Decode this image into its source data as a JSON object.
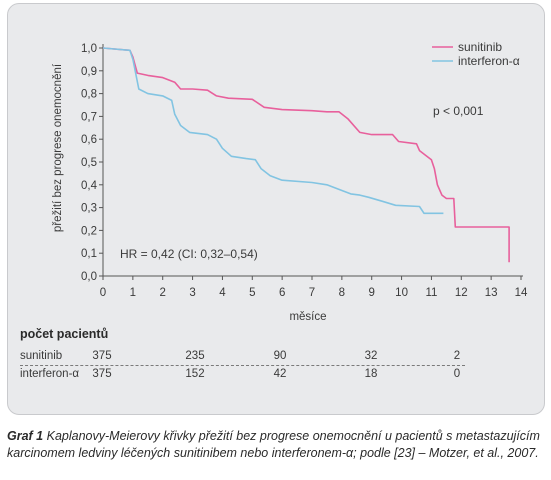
{
  "chart_data": {
    "type": "line",
    "xlabel": "měsíce",
    "ylabel": "přežití bez progrese onemocnění",
    "xlim": [
      0,
      14
    ],
    "ylim": [
      0,
      1.0
    ],
    "x_ticks": [
      "0",
      "1",
      "2",
      "3",
      "4",
      "5",
      "6",
      "7",
      "8",
      "9",
      "10",
      "11",
      "12",
      "13",
      "14"
    ],
    "y_ticks": [
      "0,0",
      "0,1",
      "0,2",
      "0,3",
      "0,4",
      "0,5",
      "0,6",
      "0,7",
      "0,8",
      "0,9",
      "1,0"
    ],
    "legend_position": "top-right",
    "series": [
      {
        "name": "sunitinib",
        "color": "#e8609c",
        "points": [
          [
            0,
            1.0
          ],
          [
            0.9,
            0.99
          ],
          [
            1.0,
            0.96
          ],
          [
            1.15,
            0.89
          ],
          [
            1.5,
            0.88
          ],
          [
            2.0,
            0.87
          ],
          [
            2.4,
            0.85
          ],
          [
            2.6,
            0.82
          ],
          [
            3.0,
            0.82
          ],
          [
            3.5,
            0.815
          ],
          [
            3.8,
            0.79
          ],
          [
            4.2,
            0.78
          ],
          [
            5.0,
            0.775
          ],
          [
            5.4,
            0.74
          ],
          [
            6.0,
            0.73
          ],
          [
            7.0,
            0.725
          ],
          [
            7.5,
            0.72
          ],
          [
            7.9,
            0.72
          ],
          [
            8.2,
            0.69
          ],
          [
            8.6,
            0.63
          ],
          [
            9.0,
            0.62
          ],
          [
            9.7,
            0.62
          ],
          [
            9.9,
            0.59
          ],
          [
            10.5,
            0.58
          ],
          [
            10.6,
            0.55
          ],
          [
            10.8,
            0.53
          ],
          [
            11.0,
            0.51
          ],
          [
            11.1,
            0.47
          ],
          [
            11.2,
            0.4
          ],
          [
            11.35,
            0.355
          ],
          [
            11.5,
            0.34
          ],
          [
            11.75,
            0.34
          ],
          [
            11.8,
            0.215
          ],
          [
            13.6,
            0.215
          ],
          [
            13.6,
            0.06
          ]
        ]
      },
      {
        "name": "interferon-α",
        "color": "#82c4e2",
        "points": [
          [
            0,
            1.0
          ],
          [
            0.9,
            0.99
          ],
          [
            1.0,
            0.95
          ],
          [
            1.2,
            0.82
          ],
          [
            1.5,
            0.8
          ],
          [
            2.0,
            0.79
          ],
          [
            2.3,
            0.77
          ],
          [
            2.4,
            0.71
          ],
          [
            2.6,
            0.66
          ],
          [
            2.9,
            0.63
          ],
          [
            3.5,
            0.62
          ],
          [
            3.8,
            0.6
          ],
          [
            4.0,
            0.56
          ],
          [
            4.3,
            0.525
          ],
          [
            4.8,
            0.515
          ],
          [
            5.1,
            0.51
          ],
          [
            5.3,
            0.47
          ],
          [
            5.6,
            0.44
          ],
          [
            6.0,
            0.42
          ],
          [
            7.0,
            0.41
          ],
          [
            7.5,
            0.4
          ],
          [
            8.0,
            0.375
          ],
          [
            8.3,
            0.36
          ],
          [
            8.6,
            0.355
          ],
          [
            8.9,
            0.345
          ],
          [
            9.3,
            0.33
          ],
          [
            9.8,
            0.31
          ],
          [
            10.6,
            0.305
          ],
          [
            10.75,
            0.275
          ],
          [
            11.4,
            0.275
          ]
        ]
      }
    ],
    "annotations": {
      "p_value": "p < 0,001",
      "hr": "HR = 0,42 (CI: 0,32–0,54)"
    },
    "risk_table": {
      "title": "počet pacientů",
      "months": [
        0,
        3,
        6,
        9,
        12
      ],
      "rows": [
        {
          "label": "sunitinib",
          "values": [
            "375",
            "235",
            "90",
            "32",
            "2"
          ]
        },
        {
          "label": "interferon-α",
          "values": [
            "375",
            "152",
            "42",
            "18",
            "0"
          ]
        }
      ]
    }
  },
  "caption": {
    "label": "Graf 1",
    "text": "Kaplanovy-Meierovy křivky přežití bez progrese onemocnění u pacientů s metastazujícím karcinomem ledviny léčených sunitinibem nebo interferonem-α; podle [23] – Motzer, et al., 2007."
  }
}
